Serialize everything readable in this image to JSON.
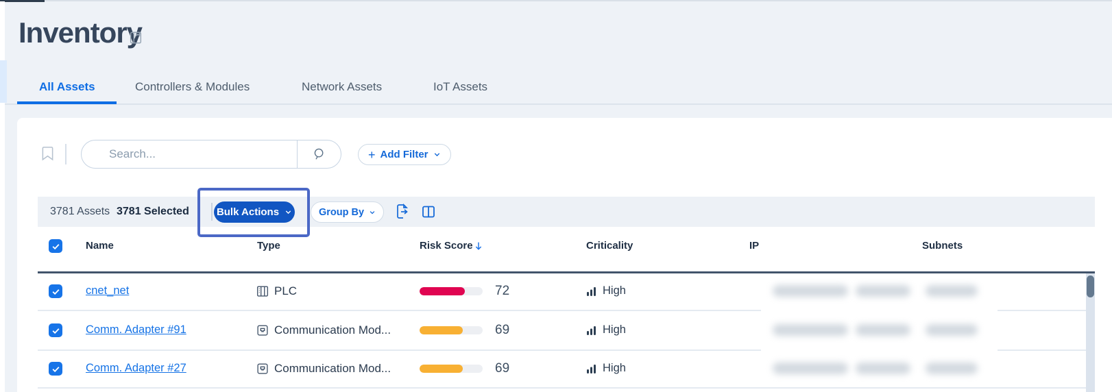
{
  "page": {
    "title": "Inventory",
    "tabs": [
      {
        "label": "All Assets",
        "active": true
      },
      {
        "label": "Controllers & Modules",
        "active": false
      },
      {
        "label": "Network Assets",
        "active": false
      },
      {
        "label": "IoT Assets",
        "active": false
      }
    ]
  },
  "filter_bar": {
    "search_placeholder": "Search...",
    "add_filter_label": "Add Filter"
  },
  "toolbar": {
    "assets_count": "3781 Assets",
    "selected_count": "3781 Selected",
    "bulk_actions_label": "Bulk Actions",
    "group_by_label": "Group By"
  },
  "table": {
    "columns": [
      "Name",
      "Type",
      "Risk Score",
      "Criticality",
      "IP",
      "Subnets"
    ],
    "sorted_by": "Risk Score",
    "sort_direction": "desc",
    "header_checked": true,
    "rows": [
      {
        "selected": true,
        "name": "cnet_net",
        "type": "PLC",
        "type_icon": "plc-icon",
        "risk_score": 72,
        "risk_color": "#e00551",
        "criticality": "High",
        "ip_redacted": true,
        "subnets_redacted": true
      },
      {
        "selected": true,
        "name": "Comm. Adapter #91",
        "type": "Communication Mod...",
        "type_icon": "communication-module-icon",
        "risk_score": 69,
        "risk_color": "#f8b033",
        "criticality": "High",
        "ip_redacted": true,
        "subnets_redacted": true
      },
      {
        "selected": true,
        "name": "Comm. Adapter #27",
        "type": "Communication Mod...",
        "type_icon": "communication-module-icon",
        "risk_score": 69,
        "risk_color": "#f8b033",
        "criticality": "High",
        "ip_redacted": true,
        "subnets_redacted": true
      }
    ]
  },
  "colors": {
    "accent_blue": "#1673e6",
    "bulk_button_blue": "#1156c2",
    "annotation_border": "#4b68c6",
    "risk_high_red": "#e00551",
    "risk_medium_orange": "#f8b033",
    "scrollbar_thumb": "#64798f"
  }
}
